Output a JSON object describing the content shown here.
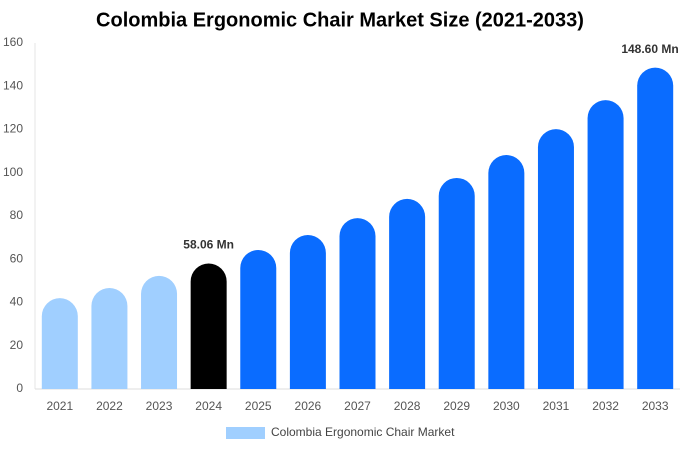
{
  "chart_data": {
    "type": "bar",
    "title": "Colombia Ergonomic Chair Market Size (2021-2033)",
    "categories": [
      "2021",
      "2022",
      "2023",
      "2024",
      "2025",
      "2026",
      "2027",
      "2028",
      "2029",
      "2030",
      "2031",
      "2032",
      "2033"
    ],
    "series": [
      {
        "name": "Colombia Ergonomic Chair Market",
        "color": "#a0cfff",
        "values": [
          42,
          46.7,
          52.3,
          58.06,
          64.3,
          71.2,
          79,
          87.9,
          97.6,
          108.2,
          120.2,
          133.6,
          148.6
        ],
        "value_labels": [
          null,
          null,
          null,
          "58.06 Mn",
          null,
          null,
          null,
          null,
          null,
          null,
          null,
          null,
          "148.60 Mn"
        ],
        "bar_colors": [
          "#a0cfff",
          "#a0cfff",
          "#a0cfff",
          "#000000",
          "#0a6cff",
          "#0a6cff",
          "#0a6cff",
          "#0a6cff",
          "#0a6cff",
          "#0a6cff",
          "#0a6cff",
          "#0a6cff",
          "#0a6cff"
        ]
      }
    ],
    "ylim": [
      0,
      160
    ],
    "yticks": [
      0,
      20,
      40,
      60,
      80,
      100,
      120,
      140,
      160
    ],
    "grid": false,
    "legend": "bottom"
  }
}
